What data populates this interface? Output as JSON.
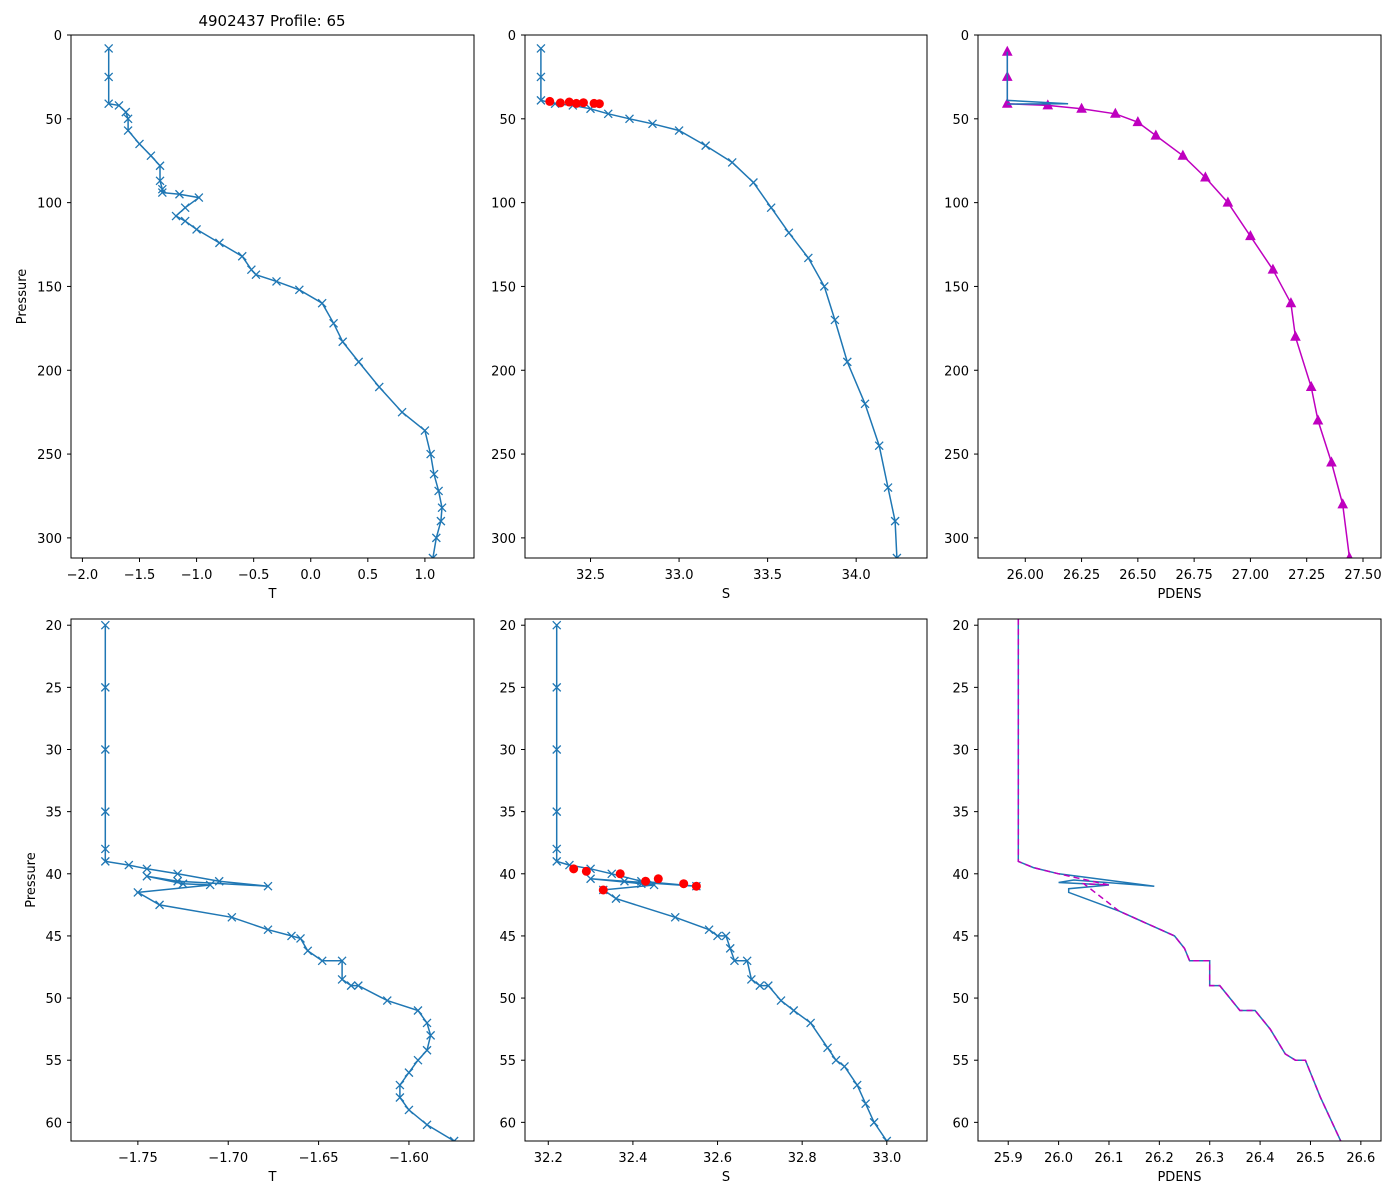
{
  "figure_title": "4902437 Profile: 65",
  "colors": {
    "series": "#1f77b4",
    "highlight": "#ff0000",
    "density": "#bf00bf"
  },
  "chart_data": [
    {
      "type": "line",
      "xlabel": "T",
      "ylabel": "Pressure",
      "xlim": [
        -2.1,
        1.43
      ],
      "ylim": [
        312,
        0
      ],
      "xticks": [
        -2.0,
        -1.5,
        -1.0,
        -0.5,
        0.0,
        0.5,
        1.0
      ],
      "xtick_labels": [
        "−2.0",
        "−1.5",
        "−1.0",
        "−0.5",
        "0.0",
        "0.5",
        "1.0"
      ],
      "yticks": [
        0,
        50,
        100,
        150,
        200,
        250,
        300
      ],
      "ytick_labels": [
        "0",
        "50",
        "100",
        "150",
        "200",
        "250",
        "300"
      ],
      "series": [
        {
          "name": "T",
          "marker": "x",
          "color": "series",
          "x": [
            -1.77,
            -1.77,
            -1.77,
            -1.68,
            -1.62,
            -1.6,
            -1.6,
            -1.5,
            -1.4,
            -1.32,
            -1.32,
            -1.3,
            -1.3,
            -1.15,
            -0.98,
            -1.1,
            -1.18,
            -1.1,
            -1.0,
            -0.8,
            -0.6,
            -0.52,
            -0.48,
            -0.3,
            -0.1,
            0.1,
            0.2,
            0.28,
            0.42,
            0.6,
            0.8,
            1.0,
            1.05,
            1.08,
            1.12,
            1.15,
            1.14,
            1.1,
            1.07
          ],
          "y": [
            8,
            25,
            41,
            42,
            46,
            50,
            57,
            65,
            72,
            78,
            87,
            92,
            94,
            95,
            97,
            103,
            108,
            111,
            116,
            124,
            132,
            140,
            143,
            147,
            152,
            160,
            172,
            183,
            195,
            210,
            225,
            236,
            250,
            262,
            272,
            282,
            290,
            300,
            312
          ]
        }
      ]
    },
    {
      "type": "line",
      "xlabel": "S",
      "ylabel": "",
      "xlim": [
        32.13,
        34.4
      ],
      "ylim": [
        312,
        0
      ],
      "xticks": [
        32.5,
        33.0,
        33.5,
        34.0
      ],
      "xtick_labels": [
        "32.5",
        "33.0",
        "33.5",
        "34.0"
      ],
      "yticks": [
        0,
        50,
        100,
        150,
        200,
        250,
        300
      ],
      "ytick_labels": [
        "0",
        "50",
        "100",
        "150",
        "200",
        "250",
        "300"
      ],
      "series": [
        {
          "name": "S",
          "marker": "x",
          "color": "series",
          "x": [
            32.22,
            32.22,
            32.22,
            32.3,
            32.4,
            32.5,
            32.6,
            32.72,
            32.85,
            33.0,
            33.15,
            33.3,
            33.42,
            33.52,
            33.62,
            33.73,
            33.82,
            33.88,
            33.95,
            34.05,
            34.13,
            34.18,
            34.22,
            34.23
          ],
          "y": [
            8,
            25,
            39,
            41,
            42,
            44,
            47,
            50,
            53,
            57,
            66,
            76,
            88,
            103,
            118,
            133,
            150,
            170,
            195,
            220,
            245,
            270,
            290,
            312
          ]
        },
        {
          "name": "flagged",
          "marker": "o",
          "color": "highlight",
          "x": [
            32.27,
            32.33,
            32.38,
            32.42,
            32.46,
            32.52,
            32.55
          ],
          "y": [
            39.6,
            40.5,
            40,
            40.8,
            40.4,
            40.8,
            41
          ]
        }
      ]
    },
    {
      "type": "line",
      "xlabel": "PDENS",
      "ylabel": "",
      "xlim": [
        25.79,
        27.58
      ],
      "ylim": [
        312,
        0
      ],
      "xticks": [
        26.0,
        26.25,
        26.5,
        26.75,
        27.0,
        27.25,
        27.5
      ],
      "xtick_labels": [
        "26.00",
        "26.25",
        "26.50",
        "26.75",
        "27.00",
        "27.25",
        "27.50"
      ],
      "yticks": [
        0,
        50,
        100,
        150,
        200,
        250,
        300
      ],
      "ytick_labels": [
        "0",
        "50",
        "100",
        "150",
        "200",
        "250",
        "300"
      ],
      "series": [
        {
          "name": "PDENS",
          "marker": "^",
          "color": "density",
          "x": [
            25.92,
            25.92,
            25.92,
            26.1,
            26.25,
            26.4,
            26.5,
            26.58,
            26.7,
            26.8,
            26.9,
            27.0,
            27.1,
            27.18,
            27.2,
            27.27,
            27.3,
            27.36,
            27.41,
            27.44
          ],
          "y": [
            10,
            25,
            41,
            42,
            44,
            47,
            52,
            60,
            72,
            85,
            100,
            120,
            140,
            160,
            180,
            210,
            230,
            255,
            280,
            312
          ]
        },
        {
          "name": "PDENS-line",
          "marker": "none",
          "color": "series",
          "x": [
            25.92,
            25.92,
            26.19,
            25.92
          ],
          "y": [
            10,
            39,
            41,
            41.2
          ]
        }
      ]
    },
    {
      "type": "line",
      "xlabel": "T",
      "ylabel": "Pressure",
      "xlim": [
        -1.787,
        -1.564
      ],
      "ylim": [
        61.5,
        19.5
      ],
      "xticks": [
        -1.75,
        -1.7,
        -1.65,
        -1.6
      ],
      "xtick_labels": [
        "−1.75",
        "−1.70",
        "−1.65",
        "−1.60"
      ],
      "yticks": [
        20,
        25,
        30,
        35,
        40,
        45,
        50,
        55,
        60
      ],
      "ytick_labels": [
        "20",
        "25",
        "30",
        "35",
        "40",
        "45",
        "50",
        "55",
        "60"
      ],
      "series": [
        {
          "name": "T",
          "marker": "x",
          "color": "series",
          "x": [
            -1.768,
            -1.768,
            -1.768,
            -1.768,
            -1.768,
            -1.768,
            -1.755,
            -1.745,
            -1.728,
            -1.705,
            -1.678,
            -1.728,
            -1.745,
            -1.725,
            -1.71,
            -1.75,
            -1.738,
            -1.698,
            -1.678,
            -1.665,
            -1.66,
            -1.656,
            -1.648,
            -1.637,
            -1.637,
            -1.632,
            -1.628,
            -1.612,
            -1.595,
            -1.59,
            -1.588,
            -1.59,
            -1.595,
            -1.6,
            -1.605,
            -1.605,
            -1.6,
            -1.59,
            -1.575
          ],
          "y": [
            20,
            25,
            30,
            35,
            38,
            39,
            39.3,
            39.6,
            40,
            40.6,
            41,
            40.6,
            40.2,
            40.8,
            40.9,
            41.5,
            42.5,
            43.5,
            44.5,
            45,
            45.2,
            46.2,
            47,
            47,
            48.5,
            49,
            49,
            50.2,
            51,
            52,
            53,
            54.2,
            55,
            56,
            57,
            58,
            59,
            60.2,
            61.5
          ]
        }
      ]
    },
    {
      "type": "line",
      "xlabel": "S",
      "ylabel": "",
      "xlim": [
        32.145,
        33.095
      ],
      "ylim": [
        61.5,
        19.5
      ],
      "xticks": [
        32.2,
        32.4,
        32.6,
        32.8,
        33.0
      ],
      "xtick_labels": [
        "32.2",
        "32.4",
        "32.6",
        "32.8",
        "33.0"
      ],
      "yticks": [
        20,
        25,
        30,
        35,
        40,
        45,
        50,
        55,
        60
      ],
      "ytick_labels": [
        "20",
        "25",
        "30",
        "35",
        "40",
        "45",
        "50",
        "55",
        "60"
      ],
      "series": [
        {
          "name": "S",
          "marker": "x",
          "color": "series",
          "x": [
            32.22,
            32.22,
            32.22,
            32.22,
            32.22,
            32.22,
            32.25,
            32.3,
            32.35,
            32.42,
            32.55,
            32.38,
            32.3,
            32.42,
            32.45,
            32.33,
            32.36,
            32.5,
            32.58,
            32.6,
            32.62,
            32.63,
            32.64,
            32.67,
            32.68,
            32.7,
            32.72,
            32.75,
            32.78,
            32.82,
            32.86,
            32.88,
            32.9,
            32.93,
            32.95,
            32.97,
            33.0
          ],
          "y": [
            20,
            25,
            30,
            35,
            38,
            39,
            39.3,
            39.6,
            40,
            40.6,
            41,
            40.6,
            40.4,
            40.8,
            40.9,
            41.3,
            42,
            43.5,
            44.5,
            45,
            45,
            46,
            47,
            47,
            48.5,
            49,
            49,
            50.2,
            51,
            52,
            54,
            55,
            55.5,
            57,
            58.5,
            60,
            61.5
          ]
        },
        {
          "name": "flagged",
          "marker": "o",
          "color": "highlight",
          "x": [
            32.26,
            32.29,
            32.37,
            32.43,
            32.46,
            32.52,
            32.55,
            32.33
          ],
          "y": [
            39.6,
            39.8,
            40,
            40.6,
            40.4,
            40.8,
            41,
            41.3
          ]
        }
      ]
    },
    {
      "type": "line",
      "xlabel": "PDENS",
      "ylabel": "",
      "xlim": [
        25.84,
        26.64
      ],
      "ylim": [
        61.5,
        19.5
      ],
      "xticks": [
        25.9,
        26.0,
        26.1,
        26.2,
        26.3,
        26.4,
        26.5,
        26.6
      ],
      "xtick_labels": [
        "25.9",
        "26.0",
        "26.1",
        "26.2",
        "26.3",
        "26.4",
        "26.5",
        "26.6"
      ],
      "yticks": [
        20,
        25,
        30,
        35,
        40,
        45,
        50,
        55,
        60
      ],
      "ytick_labels": [
        "20",
        "25",
        "30",
        "35",
        "40",
        "45",
        "50",
        "55",
        "60"
      ],
      "series": [
        {
          "name": "PDENS-line",
          "marker": "none",
          "color": "series",
          "x": [
            25.92,
            25.92,
            25.92,
            25.95,
            26.0,
            26.19,
            26.03,
            26.0,
            26.05,
            26.1,
            26.02,
            26.02,
            26.12,
            26.23,
            26.25,
            26.26,
            26.26,
            26.3,
            26.3,
            26.32,
            26.36,
            26.39,
            26.42,
            26.45,
            26.47,
            26.49,
            26.52,
            26.56
          ],
          "y": [
            19.5,
            30,
            39,
            39.5,
            40,
            41,
            40.5,
            40.7,
            40.8,
            40.9,
            41.2,
            41.5,
            43,
            45,
            46,
            47,
            47,
            47,
            49,
            49,
            51,
            51,
            52.5,
            54.5,
            55,
            55,
            58,
            61.5
          ]
        },
        {
          "name": "PDENS-dashed",
          "marker": "none",
          "dashed": true,
          "color": "density",
          "x": [
            25.92,
            25.92,
            25.92,
            25.95,
            26.0,
            26.1,
            26.05,
            26.12,
            26.23,
            26.25,
            26.26,
            26.26,
            26.3,
            26.3,
            26.32,
            26.36,
            26.39,
            26.42,
            26.45,
            26.47,
            26.49,
            26.52,
            26.56
          ],
          "y": [
            19.5,
            30,
            39,
            39.5,
            40,
            40.9,
            40.8,
            43,
            45,
            46,
            47,
            47,
            47,
            49,
            49,
            51,
            51,
            52.5,
            54.5,
            55,
            55,
            58,
            61.5
          ]
        }
      ]
    }
  ]
}
